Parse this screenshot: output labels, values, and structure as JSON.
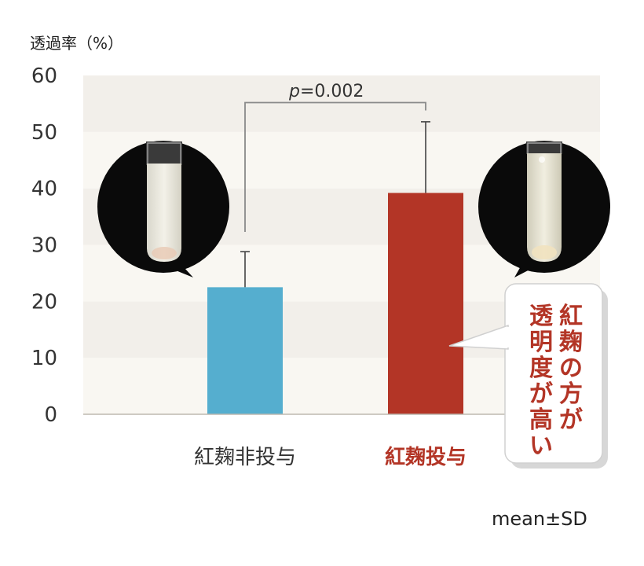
{
  "chart_data": {
    "type": "bar",
    "ylabel": "透過率（%）",
    "ylim": [
      0,
      60
    ],
    "yticks": [
      0,
      10,
      20,
      30,
      40,
      50,
      60
    ],
    "categories": [
      "紅麹非投与",
      "紅麹投与"
    ],
    "values": [
      22.5,
      39.2
    ],
    "error_upper": [
      28.8,
      51.8
    ],
    "bar_colors": [
      "#55aecf",
      "#b33526"
    ],
    "label_colors": [
      "#333333",
      "#b33526"
    ],
    "significance": {
      "text": "=0.002",
      "italic_prefix": "p"
    },
    "note": "mean±SD",
    "callout": {
      "lines": [
        "紅麹の方が",
        "透明度が高い"
      ],
      "color": "#b33526"
    },
    "grid": "alternating bands",
    "photos": [
      "test-tube-cloudy",
      "test-tube-clear"
    ]
  }
}
